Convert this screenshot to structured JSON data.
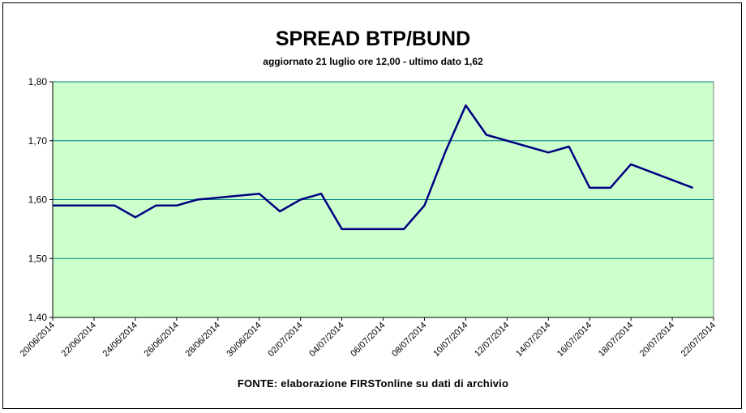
{
  "chart_data": {
    "type": "line",
    "title": "SPREAD BTP/BUND",
    "subtitle": "aggiornato 21 luglio ore 12,00 - ultimo dato 1,62",
    "source": "FONTE: elaborazione FIRSTonline su dati di archivio",
    "xlabel": "",
    "ylabel": "",
    "ylim": [
      1.4,
      1.8
    ],
    "yticks": [
      1.4,
      1.5,
      1.6,
      1.7,
      1.8
    ],
    "ytick_labels": [
      "1,40",
      "1,50",
      "1,60",
      "1,70",
      "1,80"
    ],
    "xlim": [
      "2014-06-20",
      "2014-07-22"
    ],
    "xtick_labels": [
      "20/06/2014",
      "22/06/2014",
      "24/06/2014",
      "26/06/2014",
      "28/06/2014",
      "30/06/2014",
      "02/07/2014",
      "04/07/2014",
      "06/07/2014",
      "08/07/2014",
      "10/07/2014",
      "12/07/2014",
      "14/07/2014",
      "16/07/2014",
      "18/07/2014",
      "20/07/2014",
      "22/07/2014"
    ],
    "grid": true,
    "background": "#ccffcc",
    "line_color": "#000080",
    "gridline_color": "#008080",
    "series": [
      {
        "x": [
          "2014-06-20",
          "2014-06-23",
          "2014-06-24",
          "2014-06-25",
          "2014-06-26",
          "2014-06-27",
          "2014-06-30",
          "2014-07-01",
          "2014-07-02",
          "2014-07-03",
          "2014-07-04",
          "2014-07-07",
          "2014-07-08",
          "2014-07-09",
          "2014-07-10",
          "2014-07-11",
          "2014-07-14",
          "2014-07-15",
          "2014-07-16",
          "2014-07-17",
          "2014-07-18",
          "2014-07-21"
        ],
        "y": [
          1.59,
          1.59,
          1.57,
          1.59,
          1.59,
          1.6,
          1.61,
          1.58,
          1.6,
          1.61,
          1.55,
          1.55,
          1.59,
          1.68,
          1.76,
          1.71,
          1.68,
          1.69,
          1.62,
          1.62,
          1.66,
          1.62
        ]
      }
    ]
  }
}
